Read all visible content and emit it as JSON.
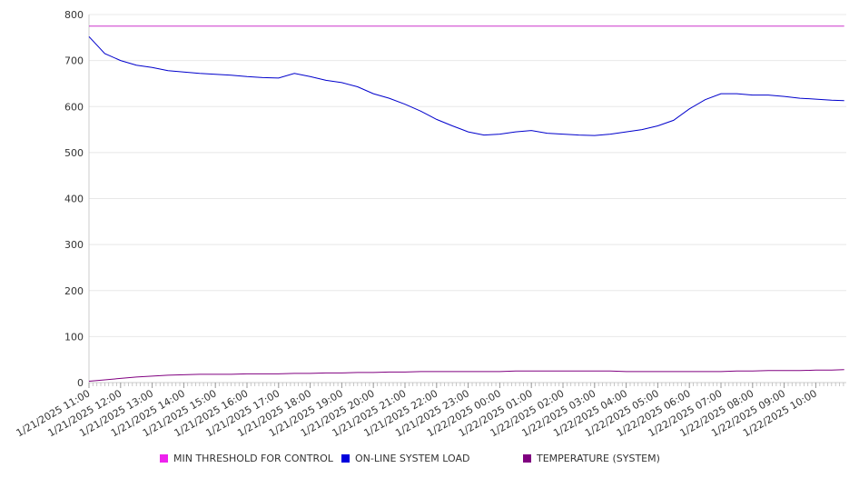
{
  "chart_data": {
    "type": "line",
    "xlabel": "",
    "ylabel": "",
    "ylim": [
      0,
      800
    ],
    "yticks": [
      0,
      100,
      200,
      300,
      400,
      500,
      600,
      700,
      800
    ],
    "grid": "horizontal",
    "legend_position": "bottom",
    "x_tick_labels": [
      "1/21/2025 11:00",
      "1/21/2025 12:00",
      "1/21/2025 13:00",
      "1/21/2025 14:00",
      "1/21/2025 15:00",
      "1/21/2025 16:00",
      "1/21/2025 17:00",
      "1/21/2025 18:00",
      "1/21/2025 19:00",
      "1/21/2025 20:00",
      "1/21/2025 21:00",
      "1/21/2025 22:00",
      "1/21/2025 23:00",
      "1/22/2025 00:00",
      "1/22/2025 01:00",
      "1/22/2025 02:00",
      "1/22/2025 03:00",
      "1/22/2025 04:00",
      "1/22/2025 05:00",
      "1/22/2025 06:00",
      "1/22/2025 07:00",
      "1/22/2025 08:00",
      "1/22/2025 09:00",
      "1/22/2025 10:00"
    ],
    "x": [
      "1/21/2025 11:00",
      "1/21/2025 11:30",
      "1/21/2025 12:00",
      "1/21/2025 12:30",
      "1/21/2025 13:00",
      "1/21/2025 13:30",
      "1/21/2025 14:00",
      "1/21/2025 14:30",
      "1/21/2025 15:00",
      "1/21/2025 15:30",
      "1/21/2025 16:00",
      "1/21/2025 16:30",
      "1/21/2025 17:00",
      "1/21/2025 17:30",
      "1/21/2025 18:00",
      "1/21/2025 18:30",
      "1/21/2025 19:00",
      "1/21/2025 19:30",
      "1/21/2025 20:00",
      "1/21/2025 20:30",
      "1/21/2025 21:00",
      "1/21/2025 21:30",
      "1/21/2025 22:00",
      "1/21/2025 22:30",
      "1/21/2025 23:00",
      "1/21/2025 23:30",
      "1/22/2025 00:00",
      "1/22/2025 00:30",
      "1/22/2025 01:00",
      "1/22/2025 01:30",
      "1/22/2025 02:00",
      "1/22/2025 02:30",
      "1/22/2025 03:00",
      "1/22/2025 03:30",
      "1/22/2025 04:00",
      "1/22/2025 04:30",
      "1/22/2025 05:00",
      "1/22/2025 05:30",
      "1/22/2025 06:00",
      "1/22/2025 06:30",
      "1/22/2025 07:00",
      "1/22/2025 07:30",
      "1/22/2025 08:00",
      "1/22/2025 08:30",
      "1/22/2025 09:00",
      "1/22/2025 09:30",
      "1/22/2025 10:00",
      "1/22/2025 10:30",
      "1/22/2025 10:54"
    ],
    "series": [
      {
        "name": "MIN THRESHOLD FOR CONTROL",
        "color": "#cc33cc",
        "values": [
          775,
          775,
          775,
          775,
          775,
          775,
          775,
          775,
          775,
          775,
          775,
          775,
          775,
          775,
          775,
          775,
          775,
          775,
          775,
          775,
          775,
          775,
          775,
          775,
          775,
          775,
          775,
          775,
          775,
          775,
          775,
          775,
          775,
          775,
          775,
          775,
          775,
          775,
          775,
          775,
          775,
          775,
          775,
          775,
          775,
          775,
          775,
          775,
          775
        ]
      },
      {
        "name": "ON-LINE SYSTEM LOAD",
        "color": "#0000cc",
        "values": [
          752,
          715,
          700,
          690,
          685,
          678,
          675,
          672,
          670,
          668,
          665,
          663,
          662,
          672,
          665,
          657,
          652,
          643,
          628,
          618,
          605,
          590,
          572,
          558,
          545,
          538,
          540,
          545,
          548,
          542,
          540,
          538,
          537,
          540,
          545,
          550,
          558,
          570,
          595,
          615,
          628,
          628,
          625,
          625,
          622,
          618,
          616,
          614,
          613
        ]
      },
      {
        "name": "TEMPERATURE (SYSTEM)",
        "color": "#800080",
        "values": [
          3,
          6,
          9,
          12,
          14,
          16,
          17,
          18,
          18,
          18,
          19,
          19,
          19,
          20,
          20,
          21,
          21,
          22,
          22,
          23,
          23,
          24,
          24,
          24,
          24,
          24,
          24,
          25,
          25,
          25,
          25,
          25,
          25,
          25,
          24,
          24,
          24,
          24,
          24,
          24,
          24,
          25,
          25,
          26,
          26,
          26,
          27,
          27,
          28
        ]
      }
    ]
  }
}
